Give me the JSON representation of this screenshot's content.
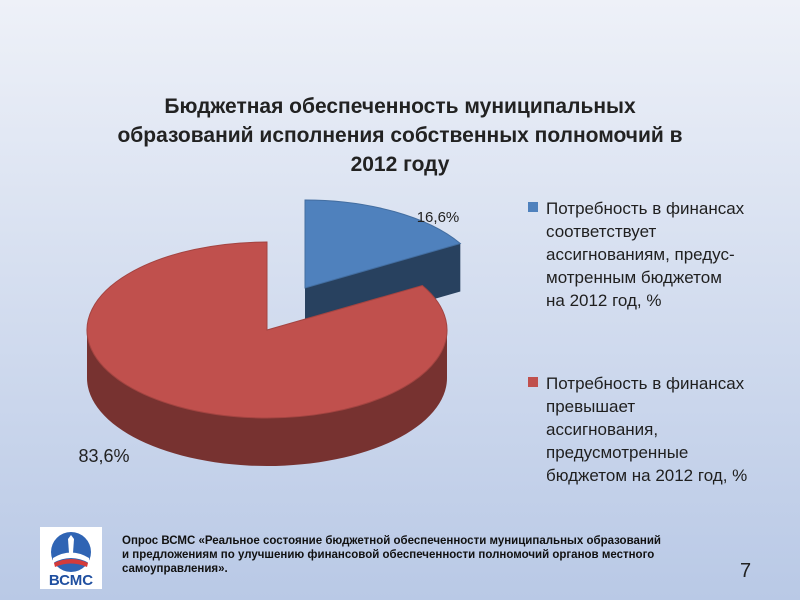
{
  "title_lines": [
    "Бюджетная  обеспеченность муниципальных",
    "образований исполнения собственных полномочий в",
    "2012 году"
  ],
  "chart_data": {
    "type": "pie",
    "title": "Бюджетная  обеспеченность муниципальных образований исполнения собственных полномочий в 2012 году",
    "legend_position": "right",
    "slices": [
      {
        "name": "Потребность в финансах соответствует ассигнованиям, предусмотренным бюджетом на 2012 год, %",
        "value": 16.6,
        "label": "16,6%",
        "color": "#4f81bd"
      },
      {
        "name": "Потребность в финансах превышает ассигнования, предусмотренные бюджетом на 2012 год, %",
        "value": 83.6,
        "label": "83,6%",
        "color": "#c0504d"
      }
    ]
  },
  "legend": [
    {
      "lines": [
        "Потребность в финансах",
        "соответствует",
        "ассигнованиям, предус-",
        "мотренным бюджетом",
        "на 2012 год, %"
      ],
      "color": "#4f81bd"
    },
    {
      "lines": [
        "Потребность в финансах",
        "превышает",
        "ассигнования,",
        "предусмотренные",
        "бюджетом на 2012 год, %"
      ],
      "color": "#c0504d"
    }
  ],
  "footer_lines": [
    "Опрос  ВСМС «Реальное состояние бюджетной обеспеченности  муниципальных образований",
    "и предложениям по улучшению финансовой обеспеченности полномочий органов местного",
    "самоуправления»."
  ],
  "logo_text": "ВСМС",
  "page_number": "7"
}
